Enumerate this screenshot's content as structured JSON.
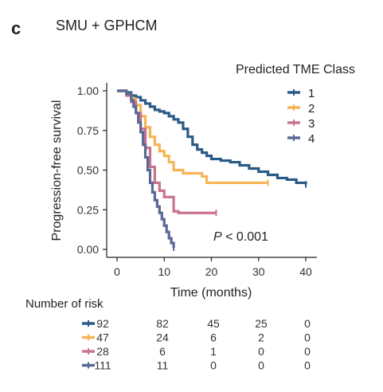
{
  "panel_label": "c",
  "title": "SMU + GPHCM",
  "chart_data": {
    "type": "line",
    "subtype": "kaplan-meier",
    "title": "SMU + GPHCM",
    "xlabel": "Time (months)",
    "ylabel": "Progression-free survival",
    "xlim": [
      0,
      40
    ],
    "ylim": [
      0,
      1
    ],
    "xticks": [
      0,
      10,
      20,
      30,
      40
    ],
    "yticks": [
      0.0,
      0.25,
      0.5,
      0.75,
      1.0
    ],
    "ytick_labels": [
      "0.00",
      "0.25",
      "0.50",
      "0.75",
      "1.00"
    ],
    "legend_title": "Predicted TME Class",
    "legend_position": "top-right",
    "annotation": {
      "prefix": "P",
      "text": " < 0.001"
    },
    "series": [
      {
        "name": "1",
        "color": "#2a5b87",
        "x": [
          0,
          2,
          3,
          4,
          5,
          6,
          7,
          8,
          9,
          10,
          11,
          12,
          13,
          14,
          15,
          16,
          17,
          18,
          19,
          20,
          22,
          24,
          26,
          28,
          30,
          32,
          34,
          36,
          38,
          40
        ],
        "y": [
          1.0,
          0.99,
          0.97,
          0.96,
          0.94,
          0.92,
          0.9,
          0.88,
          0.87,
          0.86,
          0.84,
          0.82,
          0.8,
          0.76,
          0.71,
          0.66,
          0.63,
          0.61,
          0.59,
          0.57,
          0.56,
          0.55,
          0.53,
          0.51,
          0.49,
          0.47,
          0.45,
          0.44,
          0.42,
          0.41
        ]
      },
      {
        "name": "2",
        "color": "#f5b556",
        "x": [
          0,
          2,
          3,
          4,
          5,
          6,
          7,
          8,
          9,
          10,
          11,
          12,
          14,
          16,
          18,
          19,
          20,
          22,
          26,
          30,
          32
        ],
        "y": [
          1.0,
          0.98,
          0.95,
          0.91,
          0.84,
          0.77,
          0.71,
          0.66,
          0.62,
          0.59,
          0.55,
          0.5,
          0.48,
          0.48,
          0.46,
          0.42,
          0.42,
          0.42,
          0.42,
          0.42,
          0.42
        ]
      },
      {
        "name": "3",
        "color": "#c9738e",
        "x": [
          0,
          2,
          3,
          4,
          5,
          6,
          7,
          8,
          9,
          10,
          11,
          12,
          13,
          14,
          16,
          18,
          20,
          21
        ],
        "y": [
          1.0,
          0.97,
          0.93,
          0.86,
          0.76,
          0.64,
          0.52,
          0.42,
          0.37,
          0.33,
          0.33,
          0.24,
          0.23,
          0.23,
          0.23,
          0.23,
          0.23,
          0.23
        ]
      },
      {
        "name": "4",
        "color": "#5a6894",
        "x": [
          0,
          1,
          2,
          3,
          3.5,
          4,
          4.5,
          5,
          5.5,
          6,
          6.5,
          7,
          7.5,
          8,
          8.5,
          9,
          9.5,
          10,
          10.5,
          11,
          11.5,
          12
        ],
        "y": [
          1.0,
          1.0,
          0.98,
          0.94,
          0.9,
          0.86,
          0.8,
          0.74,
          0.66,
          0.58,
          0.5,
          0.42,
          0.36,
          0.31,
          0.27,
          0.23,
          0.19,
          0.15,
          0.11,
          0.07,
          0.04,
          0.01
        ]
      }
    ]
  },
  "risk_table": {
    "title": "Number of risk",
    "rows": [
      {
        "color": "#2a5b87",
        "values": [
          "92",
          "82",
          "45",
          "25",
          "0"
        ]
      },
      {
        "color": "#f5b556",
        "values": [
          "47",
          "24",
          "6",
          "2",
          "0"
        ]
      },
      {
        "color": "#c9738e",
        "values": [
          "28",
          "6",
          "1",
          "0",
          "0"
        ]
      },
      {
        "color": "#5a6894",
        "values": [
          "111",
          "11",
          "0",
          "0",
          "0"
        ]
      }
    ]
  }
}
